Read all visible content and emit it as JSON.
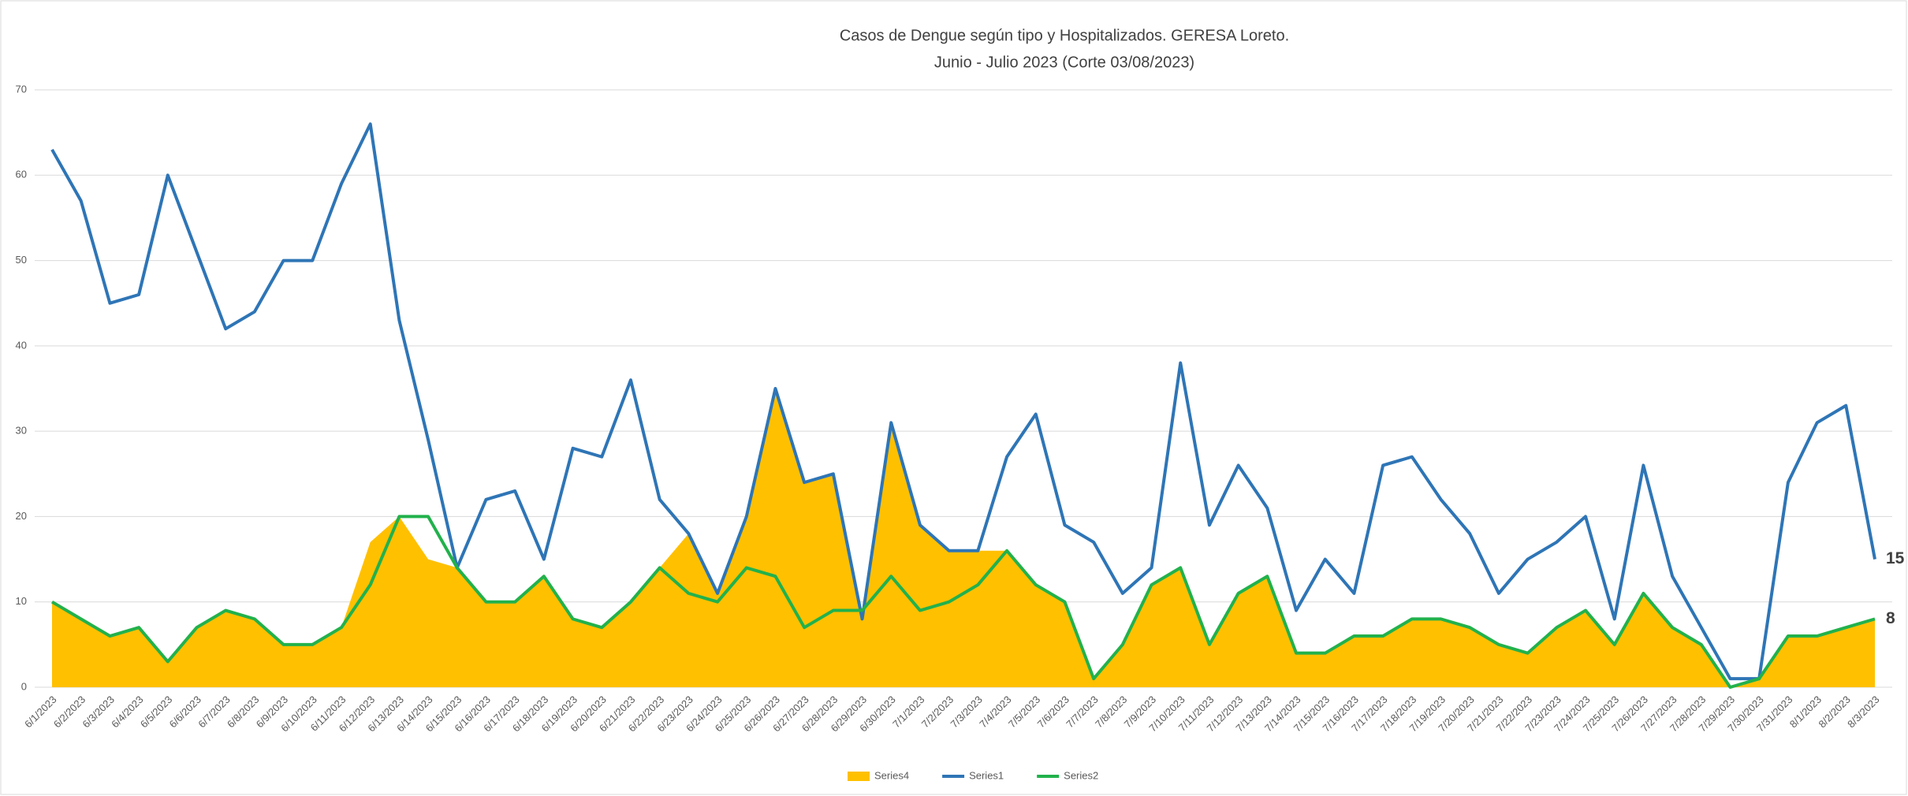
{
  "chart_data": {
    "type": "line",
    "title": "Casos de Dengue según tipo y Hospitalizados. GERESA Loreto.",
    "subtitle": "Junio - Julio 2023 (Corte 03/08/2023)",
    "categories": [
      "6/1/2023",
      "6/2/2023",
      "6/3/2023",
      "6/4/2023",
      "6/5/2023",
      "6/6/2023",
      "6/7/2023",
      "6/8/2023",
      "6/9/2023",
      "6/10/2023",
      "6/11/2023",
      "6/12/2023",
      "6/13/2023",
      "6/14/2023",
      "6/15/2023",
      "6/16/2023",
      "6/17/2023",
      "6/18/2023",
      "6/19/2023",
      "6/20/2023",
      "6/21/2023",
      "6/22/2023",
      "6/23/2023",
      "6/24/2023",
      "6/25/2023",
      "6/26/2023",
      "6/27/2023",
      "6/28/2023",
      "6/29/2023",
      "6/30/2023",
      "7/1/2023",
      "7/2/2023",
      "7/3/2023",
      "7/4/2023",
      "7/5/2023",
      "7/6/2023",
      "7/7/2023",
      "7/8/2023",
      "7/9/2023",
      "7/10/2023",
      "7/11/2023",
      "7/12/2023",
      "7/13/2023",
      "7/14/2023",
      "7/15/2023",
      "7/16/2023",
      "7/17/2023",
      "7/18/2023",
      "7/19/2023",
      "7/20/2023",
      "7/21/2023",
      "7/22/2023",
      "7/23/2023",
      "7/24/2023",
      "7/25/2023",
      "7/26/2023",
      "7/27/2023",
      "7/28/2023",
      "7/29/2023",
      "7/30/2023",
      "7/31/2023",
      "8/1/2023",
      "8/2/2023",
      "8/3/2023"
    ],
    "series": [
      {
        "name": "Series4",
        "type": "area",
        "color": "#FFC000",
        "values": [
          10,
          8,
          6,
          7,
          3,
          7,
          9,
          8,
          5,
          5,
          7,
          17,
          20,
          15,
          14,
          10,
          10,
          13,
          8,
          7,
          10,
          14,
          18,
          11,
          20,
          35,
          24,
          25,
          8,
          31,
          19,
          16,
          16,
          16,
          12,
          10,
          1,
          5,
          12,
          14,
          5,
          11,
          13,
          4,
          4,
          6,
          6,
          8,
          8,
          7,
          5,
          4,
          7,
          9,
          5,
          11,
          7,
          5,
          0,
          1,
          6,
          6,
          7,
          8
        ]
      },
      {
        "name": "Series1",
        "type": "line",
        "color": "#2E75B6",
        "label_last": true,
        "values": [
          63,
          57,
          45,
          46,
          60,
          51,
          42,
          44,
          50,
          50,
          59,
          66,
          43,
          29,
          14,
          22,
          23,
          15,
          28,
          27,
          36,
          22,
          18,
          11,
          20,
          35,
          24,
          25,
          8,
          31,
          19,
          16,
          16,
          27,
          32,
          19,
          17,
          11,
          14,
          38,
          19,
          26,
          21,
          9,
          15,
          11,
          26,
          27,
          22,
          18,
          11,
          15,
          17,
          20,
          8,
          26,
          13,
          7,
          1,
          1,
          24,
          31,
          33,
          15
        ]
      },
      {
        "name": "Series2",
        "type": "line",
        "color": "#22B14C",
        "label_last": true,
        "values": [
          10,
          8,
          6,
          7,
          3,
          7,
          9,
          8,
          5,
          5,
          7,
          12,
          20,
          20,
          14,
          10,
          10,
          13,
          8,
          7,
          10,
          14,
          11,
          10,
          14,
          13,
          7,
          9,
          9,
          13,
          9,
          10,
          12,
          16,
          12,
          10,
          1,
          5,
          12,
          14,
          5,
          11,
          13,
          4,
          4,
          6,
          6,
          8,
          8,
          7,
          5,
          4,
          7,
          9,
          5,
          11,
          7,
          5,
          0,
          1,
          6,
          6,
          7,
          8
        ]
      }
    ],
    "ylim": [
      0,
      70
    ],
    "yticks": [
      0,
      10,
      20,
      30,
      40,
      50,
      60,
      70
    ],
    "grid": true,
    "legend": "bottom"
  }
}
